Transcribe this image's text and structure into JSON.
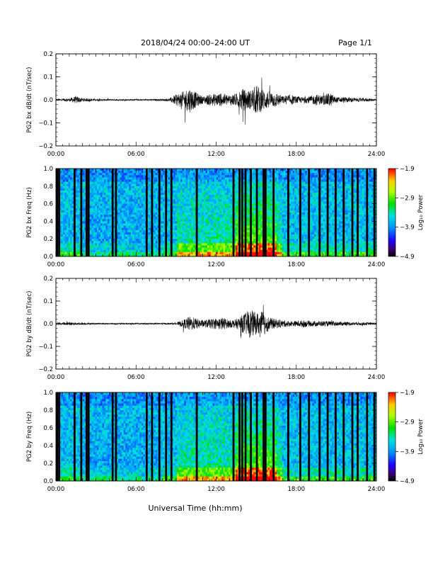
{
  "header": {
    "title": "2018/04/24   00:00–24:00 UT",
    "page": "Page 1/1"
  },
  "chart_data": [
    {
      "type": "line",
      "panel": "bx-waveform",
      "ylabel": "PG2 bx dB/dt (nT/sec)",
      "ylim": [
        -0.2,
        0.2
      ],
      "yticks": [
        "0.2",
        "0.1",
        "0.0",
        "−0.1",
        "−0.2"
      ],
      "xlim": [
        0,
        24
      ],
      "xtick_labels": [
        "00:00",
        "06:00",
        "12:00",
        "18:00",
        "24:00"
      ],
      "envelope": {
        "x": [
          0,
          1,
          1.5,
          2,
          3,
          4,
          5,
          6,
          7,
          8,
          8.5,
          9,
          9.5,
          10,
          10.5,
          11,
          11.5,
          12,
          12.5,
          13,
          13.5,
          14,
          14.5,
          15,
          15.5,
          16,
          16.5,
          17,
          17.5,
          18,
          18.5,
          19,
          19.5,
          20,
          20.5,
          21,
          21.5,
          22,
          22.5,
          23,
          24
        ],
        "y": [
          0.006,
          0.008,
          0.02,
          0.01,
          0.006,
          0.004,
          0.004,
          0.004,
          0.004,
          0.005,
          0.008,
          0.03,
          0.045,
          0.07,
          0.04,
          0.02,
          0.03,
          0.035,
          0.035,
          0.03,
          0.035,
          0.06,
          0.05,
          0.08,
          0.06,
          0.045,
          0.04,
          0.02,
          0.03,
          0.02,
          0.015,
          0.02,
          0.03,
          0.025,
          0.04,
          0.015,
          0.015,
          0.015,
          0.01,
          0.01,
          0.006
        ]
      }
    },
    {
      "type": "heatmap",
      "panel": "bx-spectrogram",
      "ylabel": "PG2 bx Freq (Hz)",
      "ylim": [
        0,
        1.0
      ],
      "yticks": [
        "1.0",
        "0.8",
        "0.6",
        "0.4",
        "0.2",
        "0.0"
      ],
      "xlim": [
        0,
        24
      ],
      "xtick_labels": [
        "00:00",
        "06:00",
        "12:00",
        "18:00",
        "24:00"
      ],
      "colorbar": {
        "label": "Log₁₀ Power",
        "ticks": [
          "−1.9",
          "−2.9",
          "−3.9",
          "−4.9"
        ],
        "range": [
          -4.9,
          -1.9
        ]
      },
      "gap_hours": [
        0.1,
        0.25,
        1.4,
        1.9,
        2.3,
        2.45,
        4.25,
        4.5,
        6.8,
        7.2,
        7.75,
        8.25,
        8.65,
        10.55,
        13.3,
        13.75,
        13.95,
        14.2,
        14.6,
        15.05,
        15.55,
        15.7,
        16.3,
        17.4,
        18.3,
        18.95,
        19.75,
        20.35,
        20.95,
        21.55,
        22.2,
        22.6,
        23.3,
        23.85
      ]
    },
    {
      "type": "line",
      "panel": "by-waveform",
      "ylabel": "PG2 by dB/dt (nT/sec)",
      "ylim": [
        -0.2,
        0.2
      ],
      "yticks": [
        "0.2",
        "0.1",
        "0.0",
        "−0.1",
        "−0.2"
      ],
      "xlim": [
        0,
        24
      ],
      "xtick_labels": [
        "00:00",
        "06:00",
        "12:00",
        "18:00",
        "24:00"
      ],
      "envelope": {
        "x": [
          0,
          1,
          2,
          3,
          4,
          5,
          6,
          7,
          8,
          9,
          9.5,
          10,
          10.5,
          11,
          11.5,
          12,
          12.5,
          13,
          13.5,
          14,
          14.5,
          15,
          15.5,
          16,
          16.5,
          17,
          17.5,
          18,
          18.5,
          19,
          20,
          21,
          22,
          23,
          24
        ],
        "y": [
          0.006,
          0.008,
          0.006,
          0.004,
          0.004,
          0.004,
          0.004,
          0.004,
          0.004,
          0.005,
          0.02,
          0.04,
          0.03,
          0.02,
          0.025,
          0.03,
          0.035,
          0.02,
          0.025,
          0.05,
          0.08,
          0.06,
          0.07,
          0.035,
          0.025,
          0.02,
          0.015,
          0.015,
          0.02,
          0.015,
          0.015,
          0.012,
          0.01,
          0.008,
          0.006
        ]
      }
    },
    {
      "type": "heatmap",
      "panel": "by-spectrogram",
      "ylabel": "PG2 by Freq (Hz)",
      "ylim": [
        0,
        1.0
      ],
      "yticks": [
        "1.0",
        "0.8",
        "0.6",
        "0.4",
        "0.2",
        "0.0"
      ],
      "xlim": [
        0,
        24
      ],
      "xtick_labels": [
        "00:00",
        "06:00",
        "12:00",
        "18:00",
        "24:00"
      ],
      "colorbar": {
        "label": "Log₁₀ Power",
        "ticks": [
          "−1.9",
          "−2.9",
          "−3.9",
          "−4.9"
        ],
        "range": [
          -4.9,
          -1.9
        ]
      },
      "gap_hours": [
        0.1,
        0.25,
        1.4,
        1.9,
        2.3,
        2.45,
        4.25,
        4.5,
        6.8,
        7.2,
        7.75,
        8.25,
        8.65,
        10.55,
        13.3,
        13.75,
        13.95,
        14.2,
        14.6,
        15.05,
        15.55,
        15.7,
        16.3,
        17.4,
        18.3,
        18.95,
        19.75,
        20.35,
        20.95,
        21.55,
        22.2,
        22.6,
        23.3,
        23.85
      ]
    }
  ],
  "footer": {
    "xlabel": "Universal Time (hh:mm)"
  }
}
